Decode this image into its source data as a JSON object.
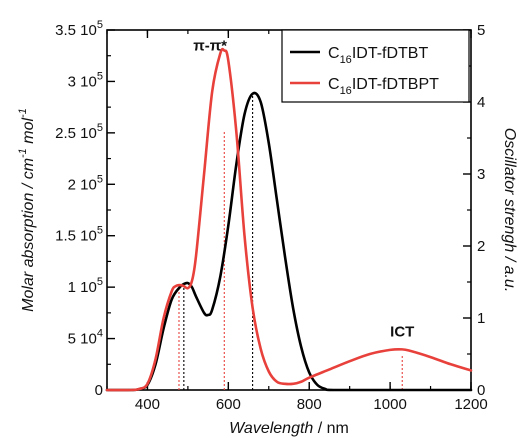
{
  "chart_data": {
    "type": "line",
    "xlabel_main": "Wavelength",
    "xlabel_unit": " / nm",
    "ylabel_left": "Molar absorption / cm",
    "ylabel_left_sup1": "-1",
    "ylabel_left_mid": " mol",
    "ylabel_left_sup2": "-1",
    "ylabel_right": "Oscillator strengh / a.u.",
    "xlim": [
      300,
      1200
    ],
    "ylim_left": [
      0,
      350000
    ],
    "ylim_right": [
      0,
      5
    ],
    "x_ticks": [
      {
        "value": 400,
        "label": "400"
      },
      {
        "value": 600,
        "label": "600"
      },
      {
        "value": 800,
        "label": "800"
      },
      {
        "value": 1000,
        "label": "1000"
      },
      {
        "value": 1200,
        "label": "1200"
      }
    ],
    "y_left_ticks": [
      {
        "value": 0,
        "mant": "0",
        "exp": ""
      },
      {
        "value": 50000,
        "mant": "5 10",
        "exp": "4"
      },
      {
        "value": 100000,
        "mant": "1 10",
        "exp": "5"
      },
      {
        "value": 150000,
        "mant": "1.5 10",
        "exp": "5"
      },
      {
        "value": 200000,
        "mant": "2 10",
        "exp": "5"
      },
      {
        "value": 250000,
        "mant": "2.5 10",
        "exp": "5"
      },
      {
        "value": 300000,
        "mant": "3 10",
        "exp": "5"
      },
      {
        "value": 350000,
        "mant": "3.5 10",
        "exp": "5"
      }
    ],
    "y_right_ticks": [
      {
        "value": 0,
        "label": "0"
      },
      {
        "value": 1,
        "label": "1"
      },
      {
        "value": 2,
        "label": "2"
      },
      {
        "value": 3,
        "label": "3"
      },
      {
        "value": 4,
        "label": "4"
      },
      {
        "value": 5,
        "label": "5"
      }
    ],
    "series": [
      {
        "name_prefix": "C",
        "name_sub": "16",
        "name_rest": "IDT-fDTBT",
        "color": "#000000",
        "x": [
          300,
          360,
          380,
          400,
          420,
          440,
          460,
          480,
          490,
          500,
          510,
          520,
          540,
          550,
          560,
          580,
          600,
          620,
          640,
          660,
          680,
          700,
          720,
          740,
          760,
          780,
          800,
          820,
          840,
          860,
          1000,
          1200
        ],
        "y": [
          0,
          0,
          1000,
          5000,
          25000,
          60000,
          88000,
          100000,
          103000,
          104000,
          100000,
          91000,
          75000,
          73000,
          78000,
          110000,
          160000,
          220000,
          268000,
          288000,
          280000,
          240000,
          185000,
          130000,
          80000,
          42000,
          17000,
          5000,
          1000,
          0,
          0,
          0
        ]
      },
      {
        "name_prefix": "C",
        "name_sub": "16",
        "name_rest": "IDT-fDTBPT",
        "color": "#e8413c",
        "x": [
          300,
          360,
          380,
          400,
          420,
          440,
          460,
          470,
          480,
          490,
          500,
          510,
          520,
          540,
          560,
          580,
          590,
          600,
          620,
          640,
          660,
          680,
          700,
          720,
          740,
          760,
          780,
          800,
          850,
          900,
          950,
          1000,
          1030,
          1050,
          1100,
          1150,
          1200
        ],
        "y": [
          0,
          0,
          1000,
          6000,
          30000,
          70000,
          96000,
          101000,
          102000,
          101000,
          99000,
          106000,
          130000,
          210000,
          290000,
          327000,
          330000,
          320000,
          250000,
          150000,
          80000,
          40000,
          18000,
          8000,
          6000,
          6000,
          8000,
          12000,
          20000,
          28000,
          35000,
          39000,
          39500,
          38000,
          32000,
          25000,
          19000
        ]
      }
    ],
    "oscillator_sticks": [
      {
        "series": 0,
        "x": 490,
        "f": 1.5
      },
      {
        "series": 0,
        "x": 660,
        "f": 4.1
      },
      {
        "series": 1,
        "x": 478,
        "f": 1.4
      },
      {
        "series": 1,
        "x": 590,
        "f": 3.6
      },
      {
        "series": 1,
        "x": 1030,
        "f": 0.5
      }
    ],
    "annotations": [
      {
        "text": "π-π*",
        "x": 555,
        "y": 330000
      },
      {
        "text": "ICT",
        "x": 1030,
        "y": 52000
      }
    ],
    "legend_position": "top-right",
    "grid": false
  }
}
